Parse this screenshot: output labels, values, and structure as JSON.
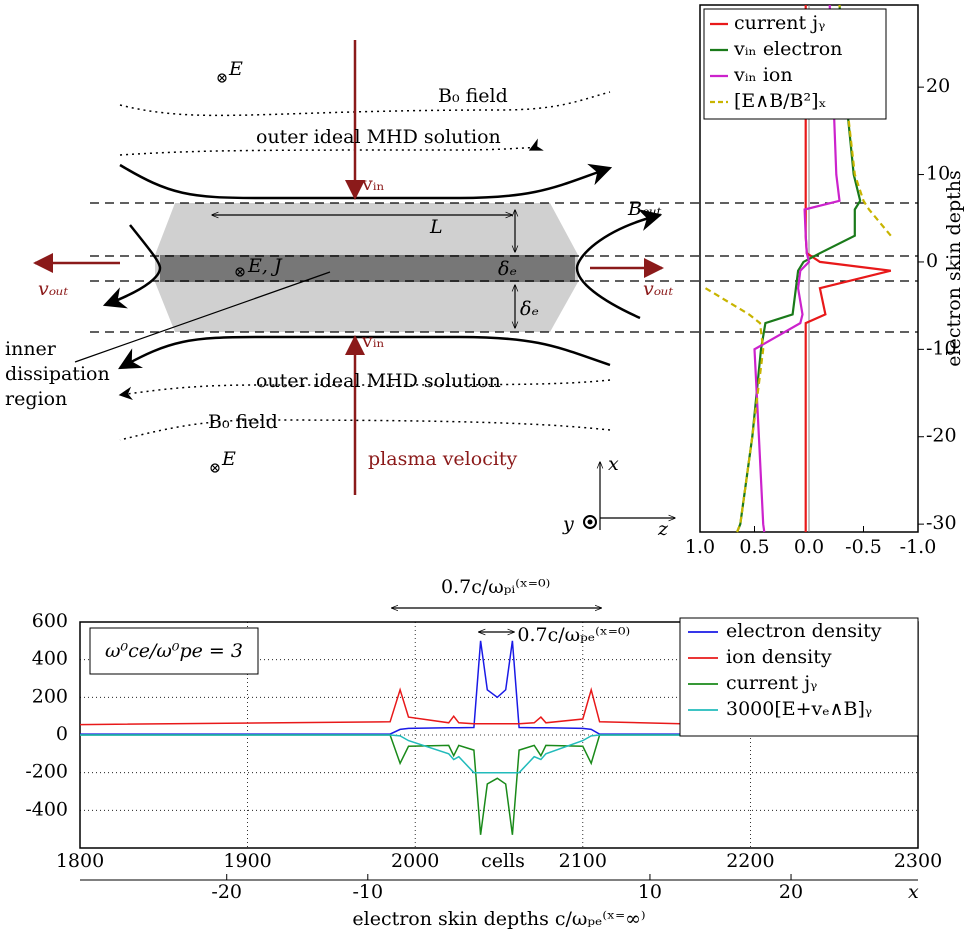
{
  "diagram": {
    "labels": [
      "E",
      "B₀ field",
      "outer ideal MHD solution",
      "vᵢₙ",
      "L",
      "Bₒᵤₜ",
      "vₒᵤₜ",
      "E, J",
      "δₑ",
      "δₑ",
      "vₒᵤₜ",
      "inner",
      "dissipation",
      "region",
      "vᵢₙ",
      "outer ideal MHD solution",
      "B₀ field",
      "E",
      "plasma velocity",
      "x",
      "y",
      "z"
    ]
  },
  "chart_data": [
    {
      "type": "line",
      "ylabel": "electron skin depths",
      "y": [
        -30.9,
        -30,
        -20,
        -10,
        -7,
        -6,
        -3,
        -1,
        0,
        1,
        3,
        6,
        7,
        10,
        20,
        29.4
      ],
      "xlim": [
        1.0,
        -1.0
      ],
      "ylim": [
        -30.9,
        29.4
      ],
      "xticks": [
        {
          "value": 1,
          "label": "1.0"
        },
        0.5,
        {
          "value": 0,
          "label": "0.0"
        },
        -0.5,
        {
          "value": -1,
          "label": "-1.0"
        }
      ],
      "yticks": [
        -30,
        -20,
        -10,
        0,
        10,
        20
      ],
      "legend": "upper left",
      "series": [
        {
          "name": "current jᵧ",
          "color": "#e8191a",
          "values": [
            0.03,
            0.03,
            0.03,
            0.03,
            0.03,
            -0.15,
            -0.1,
            -0.75,
            -0.1,
            0.02,
            0.03,
            0.03,
            0.03,
            0.03,
            0.03,
            0.03
          ]
        },
        {
          "name": "vᵢₙ electron",
          "color": "#1a7a1a",
          "values": [
            0.66,
            0.63,
            0.52,
            0.44,
            0.4,
            0.15,
            0.12,
            0.1,
            0.05,
            -0.1,
            -0.42,
            -0.42,
            -0.47,
            -0.41,
            -0.33,
            -0.28
          ]
        },
        {
          "name": "vᵢₙ ion",
          "color": "#cc22cc",
          "values": [
            0.41,
            0.42,
            0.46,
            0.5,
            0.08,
            0.06,
            0.1,
            0.08,
            0.0,
            0.02,
            0.03,
            0.04,
            -0.28,
            -0.25,
            -0.22,
            -0.19
          ]
        },
        {
          "name": "[E∧B/B²]ₓ",
          "color": "#c8b400",
          "dashed": true,
          "values": [
            0.66,
            0.63,
            0.52,
            0.42,
            0.45,
            0.55,
            0.95,
            null,
            null,
            null,
            -0.75,
            -0.55,
            -0.5,
            -0.42,
            -0.33,
            -0.28
          ]
        }
      ]
    },
    {
      "type": "line",
      "xlabel": "cells",
      "x2label": "electron skin depths c/ωₚₑ⁽ˣ⁼∞⁾",
      "x2name": "x",
      "annotations": [
        "0.7c/ωₚᵢ⁽ˣ⁼⁰⁾",
        "0.7c/ωₚₑ⁽ˣ⁼⁰⁾",
        "ω⁰ce/ω⁰pe = 3"
      ],
      "x": [
        1800,
        1985,
        1991,
        1996,
        2020,
        2023,
        2026,
        2035,
        2039,
        2043,
        2049,
        2054,
        2058,
        2062,
        2071,
        2075,
        2078,
        2100,
        2105,
        2110,
        2300
      ],
      "xlim": [
        1800,
        2300
      ],
      "ylim": [
        -600,
        600
      ],
      "xticks": [
        1800,
        1900,
        2000,
        2100,
        2200,
        2300
      ],
      "yticks": [
        600,
        400,
        200,
        0,
        -200,
        -400
      ],
      "x2lim": [
        -30.4,
        29
      ],
      "x2ticks": [
        -20,
        -10,
        10,
        20
      ],
      "grid": true,
      "legend": "upper right",
      "series": [
        {
          "name": "electron density",
          "color": "#1a1ae6",
          "values": [
            5,
            5,
            30,
            35,
            38,
            38,
            38,
            40,
            500,
            240,
            200,
            240,
            500,
            40,
            38,
            38,
            38,
            35,
            30,
            5,
            5
          ]
        },
        {
          "name": "ion density",
          "color": "#e8191a",
          "values": [
            55,
            70,
            240,
            95,
            65,
            100,
            65,
            60,
            60,
            60,
            60,
            60,
            60,
            60,
            65,
            95,
            65,
            85,
            240,
            70,
            30
          ]
        },
        {
          "name": "current jᵧ",
          "color": "#1a8a1a",
          "values": [
            0,
            0,
            -150,
            -60,
            -55,
            -110,
            -55,
            -80,
            -530,
            -260,
            -230,
            -260,
            -530,
            -80,
            -55,
            -110,
            -55,
            -60,
            -150,
            0,
            0
          ]
        },
        {
          "name": "3000[E+vₑ∧B]ᵧ",
          "color": "#22bbbb",
          "values": [
            0,
            0,
            -5,
            -30,
            -100,
            -130,
            -115,
            -200,
            -200,
            -200,
            -200,
            -200,
            -200,
            -200,
            -115,
            -130,
            -100,
            -30,
            -5,
            0,
            0
          ]
        }
      ]
    }
  ]
}
